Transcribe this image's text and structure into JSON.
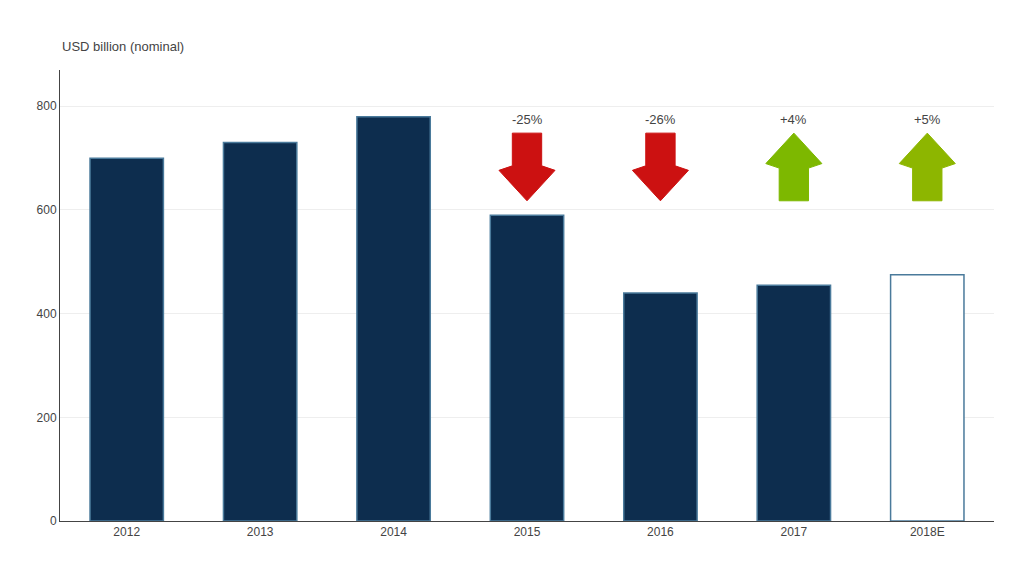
{
  "chart_data": {
    "type": "bar",
    "ylabel": "USD billion (nominal)",
    "categories": [
      "2012",
      "2013",
      "2014",
      "2015",
      "2016",
      "2017",
      "2018E"
    ],
    "values": [
      700,
      730,
      780,
      590,
      440,
      455,
      475
    ],
    "colors": [
      "#0d2d4e",
      "#0d2d4e",
      "#0d2d4e",
      "#0d2d4e",
      "#0d2d4e",
      "#0d2d4e",
      "#ffffff"
    ],
    "ylim": [
      0,
      870
    ],
    "yticks": [
      0,
      200,
      400,
      600,
      800
    ],
    "grid": true,
    "annotations": [
      {
        "category": "2015",
        "text": "-25%",
        "direction": "down",
        "color": "#cc1111"
      },
      {
        "category": "2016",
        "text": "-26%",
        "direction": "down",
        "color": "#cc1111"
      },
      {
        "category": "2017",
        "text": "+4%",
        "direction": "up",
        "color": "#7db800"
      },
      {
        "category": "2018E",
        "text": "+5%",
        "direction": "up",
        "color": "#8db600"
      }
    ]
  }
}
